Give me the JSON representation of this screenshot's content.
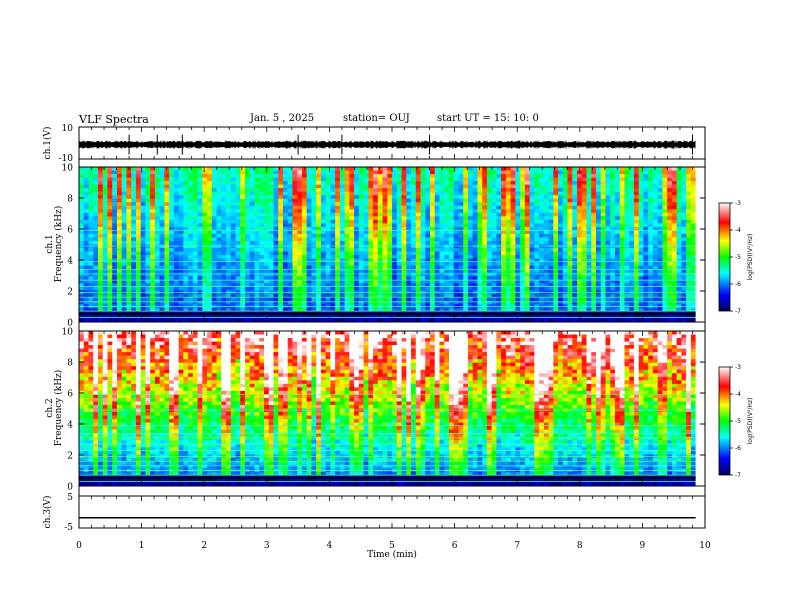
{
  "header": {
    "title": "VLF Spectra",
    "date": "Jan. 5 , 2025",
    "station": "station= OUJ",
    "start": "start UT = 15: 10: 0"
  },
  "colors": {
    "spec_low": "#00008b",
    "spec_mid": "#00ffff",
    "spec_high": "#ff0000",
    "trace": "#000000"
  },
  "chart_data": [
    {
      "type": "line",
      "panel": "ch1-waveform",
      "ylabel": "ch.1(V)",
      "ylim": [
        -10,
        10
      ],
      "y_ticks": [
        "10",
        "-10"
      ],
      "xlim": [
        0,
        10
      ],
      "trace_end_min": 9.85,
      "baseline_value": -1,
      "spike_times_min": [
        0.8,
        1.25,
        1.65,
        3.5,
        4.2,
        5.6,
        9.8
      ]
    },
    {
      "type": "heatmap",
      "panel": "ch1-spectrogram",
      "ylabel": "ch.1\nFrequency (kHz)",
      "ylim": [
        0,
        10
      ],
      "y_ticks": [
        "0",
        "2",
        "4",
        "6",
        "8",
        "10"
      ],
      "xlim": [
        0,
        10
      ],
      "data_end_min": 9.85,
      "scale": "log(PSD) (V^2/Hz)",
      "colorbar_ticks": [
        "-3",
        "-4",
        "-5",
        "-6",
        "-7"
      ],
      "colorbar_title": "log(PSD)(V²/Hz)"
    },
    {
      "type": "heatmap",
      "panel": "ch2-spectrogram",
      "ylabel": "ch.2\nFrequency (kHz)",
      "ylim": [
        0,
        10
      ],
      "y_ticks": [
        "0",
        "2",
        "4",
        "6",
        "8",
        "10"
      ],
      "xlim": [
        0,
        10
      ],
      "data_end_min": 9.85,
      "scale": "log(PSD) (V^2/Hz)",
      "colorbar_ticks": [
        "-3",
        "-4",
        "-5",
        "-6",
        "-7"
      ],
      "colorbar_title": "log(PSD)(V²/Hz)"
    },
    {
      "type": "line",
      "panel": "ch3-waveform",
      "ylabel": "ch.3(V)",
      "ylim": [
        -5,
        5
      ],
      "y_ticks": [
        "5",
        "-5"
      ],
      "xlim": [
        0,
        10
      ],
      "trace_end_min": 9.85,
      "constant_value": -1.8
    }
  ],
  "x_axis": {
    "label": "Time (min)",
    "ticks": [
      "0",
      "1",
      "2",
      "3",
      "4",
      "5",
      "6",
      "7",
      "8",
      "9",
      "10"
    ]
  }
}
